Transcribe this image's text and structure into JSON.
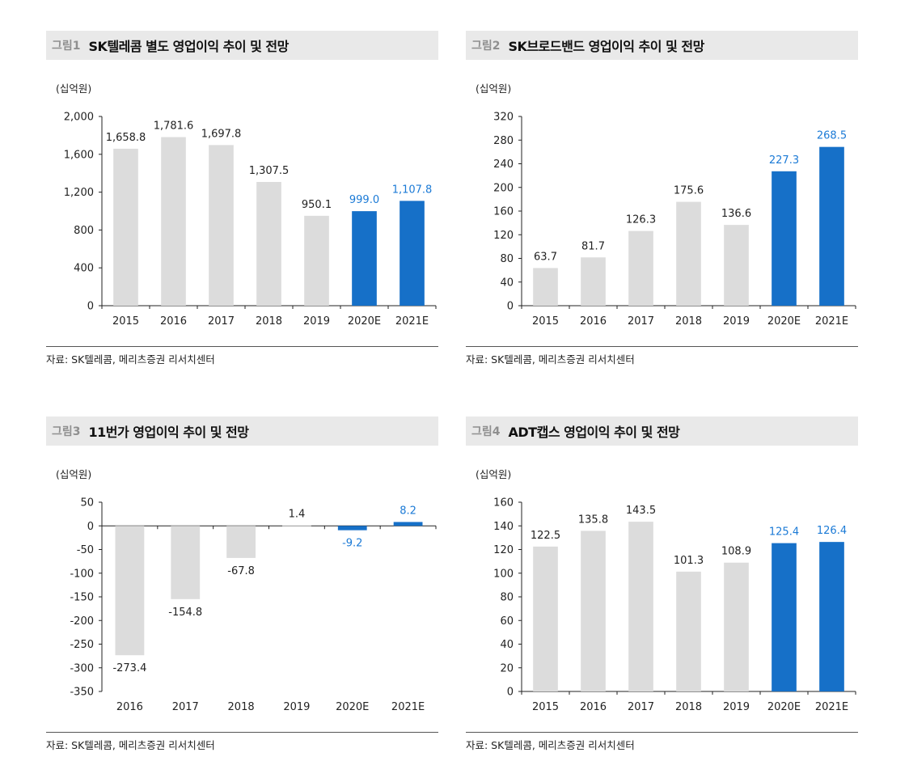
{
  "colors": {
    "actual": "#dcdcdc",
    "forecast": "#1670c8",
    "forecast_label": "#1b7ad6",
    "axis": "#222222"
  },
  "charts": [
    {
      "fig_label": "그림1",
      "title": "SK텔레콤 별도 영업이익 추이 및 전망",
      "unit": "(십억원)",
      "source": "자료: SK텔레콤, 메리츠증권 리서치센터"
    },
    {
      "fig_label": "그림2",
      "title": "SK브로드밴드 영업이익 추이 및 전망",
      "unit": "(십억원)",
      "source": "자료: SK텔레콤, 메리츠증권 리서치센터"
    },
    {
      "fig_label": "그림3",
      "title": "11번가 영업이익 추이 및 전망",
      "unit": "(십억원)",
      "source": "자료: SK텔레콤, 메리츠증권 리서치센터"
    },
    {
      "fig_label": "그림4",
      "title": "ADT캡스 영업이익 추이 및 전망",
      "unit": "(십억원)",
      "source": "자료: SK텔레콤, 메리츠증권 리서치센터"
    }
  ],
  "chart_data": [
    {
      "type": "bar",
      "title": "SK텔레콤 별도 영업이익 추이 및 전망",
      "ylabel": "(십억원)",
      "categories": [
        "2015",
        "2016",
        "2017",
        "2018",
        "2019",
        "2020E",
        "2021E"
      ],
      "values": [
        1658.8,
        1781.6,
        1697.8,
        1307.5,
        950.1,
        999.0,
        1107.8
      ],
      "value_labels": [
        "1,658.8",
        "1,781.6",
        "1,697.8",
        "1,307.5",
        "950.1",
        "999.0",
        "1,107.8"
      ],
      "forecast": [
        false,
        false,
        false,
        false,
        false,
        true,
        true
      ],
      "ylim": [
        0,
        2000
      ],
      "yticks": [
        0,
        400,
        800,
        1200,
        1600,
        2000
      ],
      "ytick_labels": [
        "0",
        "400",
        "800",
        "1,200",
        "1,600",
        "2,000"
      ]
    },
    {
      "type": "bar",
      "title": "SK브로드밴드 영업이익 추이 및 전망",
      "ylabel": "(십억원)",
      "categories": [
        "2015",
        "2016",
        "2017",
        "2018",
        "2019",
        "2020E",
        "2021E"
      ],
      "values": [
        63.7,
        81.7,
        126.3,
        175.6,
        136.6,
        227.3,
        268.5
      ],
      "value_labels": [
        "63.7",
        "81.7",
        "126.3",
        "175.6",
        "136.6",
        "227.3",
        "268.5"
      ],
      "forecast": [
        false,
        false,
        false,
        false,
        false,
        true,
        true
      ],
      "ylim": [
        0,
        320
      ],
      "yticks": [
        0,
        40,
        80,
        120,
        160,
        200,
        240,
        280,
        320
      ],
      "ytick_labels": [
        "0",
        "40",
        "80",
        "120",
        "160",
        "200",
        "240",
        "280",
        "320"
      ]
    },
    {
      "type": "bar",
      "title": "11번가 영업이익 추이 및 전망",
      "ylabel": "(십억원)",
      "categories": [
        "2016",
        "2017",
        "2018",
        "2019",
        "2020E",
        "2021E"
      ],
      "values": [
        -273.4,
        -154.8,
        -67.8,
        1.4,
        -9.2,
        8.2
      ],
      "value_labels": [
        "-273.4",
        "-154.8",
        "-67.8",
        "1.4",
        "-9.2",
        "8.2"
      ],
      "forecast": [
        false,
        false,
        false,
        false,
        true,
        true
      ],
      "ylim": [
        -350,
        50
      ],
      "yticks": [
        -350,
        -300,
        -250,
        -200,
        -150,
        -100,
        -50,
        0,
        50
      ],
      "ytick_labels": [
        "-350",
        "-300",
        "-250",
        "-200",
        "-150",
        "-100",
        "-50",
        "0",
        "50"
      ]
    },
    {
      "type": "bar",
      "title": "ADT캡스 영업이익 추이 및 전망",
      "ylabel": "(십억원)",
      "categories": [
        "2015",
        "2016",
        "2017",
        "2018",
        "2019",
        "2020E",
        "2021E"
      ],
      "values": [
        122.5,
        135.8,
        143.5,
        101.3,
        108.9,
        125.4,
        126.4
      ],
      "value_labels": [
        "122.5",
        "135.8",
        "143.5",
        "101.3",
        "108.9",
        "125.4",
        "126.4"
      ],
      "forecast": [
        false,
        false,
        false,
        false,
        false,
        true,
        true
      ],
      "ylim": [
        0,
        160
      ],
      "yticks": [
        0,
        20,
        40,
        60,
        80,
        100,
        120,
        140,
        160
      ],
      "ytick_labels": [
        "0",
        "20",
        "40",
        "60",
        "80",
        "100",
        "120",
        "140",
        "160"
      ]
    }
  ]
}
